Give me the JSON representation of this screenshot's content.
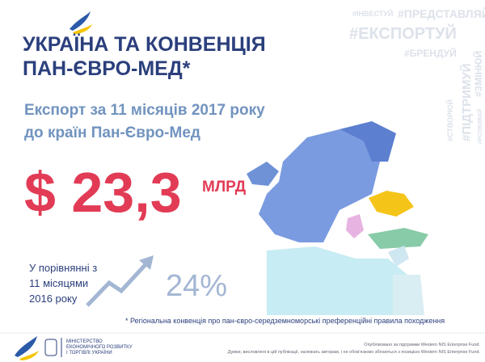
{
  "header": {
    "title_lines": [
      "УКРАЇНА ТА КОНВЕНЦІЯ",
      "ПАН-ЄВРО-МЕД*"
    ]
  },
  "hashtags": {
    "top": [
      "#ІНВЕСТУЙ",
      "#ПРЕДСТАВЛЯЙ"
    ],
    "main": "#ЕКСПОРТУЙ",
    "small": "#БРЕНДУЙ",
    "vertical": [
      "#ПІДТРИМУЙ",
      "#ЗМІНЮЙ",
      "#СТВОРЮЙ",
      "#РОЗВИВАЙ"
    ]
  },
  "subtitle_lines": [
    "Експорт за 11 місяців 2017 року",
    "до країн Пан-Євро-Мед"
  ],
  "amount": {
    "value": "$ 23,3",
    "unit": "МЛРД"
  },
  "comparison": {
    "lines": [
      "У порівнянні з",
      "11 місяцями",
      "2016 року"
    ],
    "growth": "24%"
  },
  "footnote": "* Регіональна конвенція про пан-євро-середземноморські преференційні правила походження",
  "footer": {
    "ministry_lines": [
      "МІНІСТЕРСТВО",
      "ЕКОНОМІЧНОГО РОЗВИТКУ",
      "І ТОРГІВЛІ УКРАЇНИ"
    ],
    "disclaimer_lines": [
      "Опубліковано за підтримки Western NIS Enterprise Fund.",
      "Думки, висловлені в цій публікації, належать авторам, і не обов'язково збігаються з позицією Western NIS Enterprise Fund."
    ]
  }
}
